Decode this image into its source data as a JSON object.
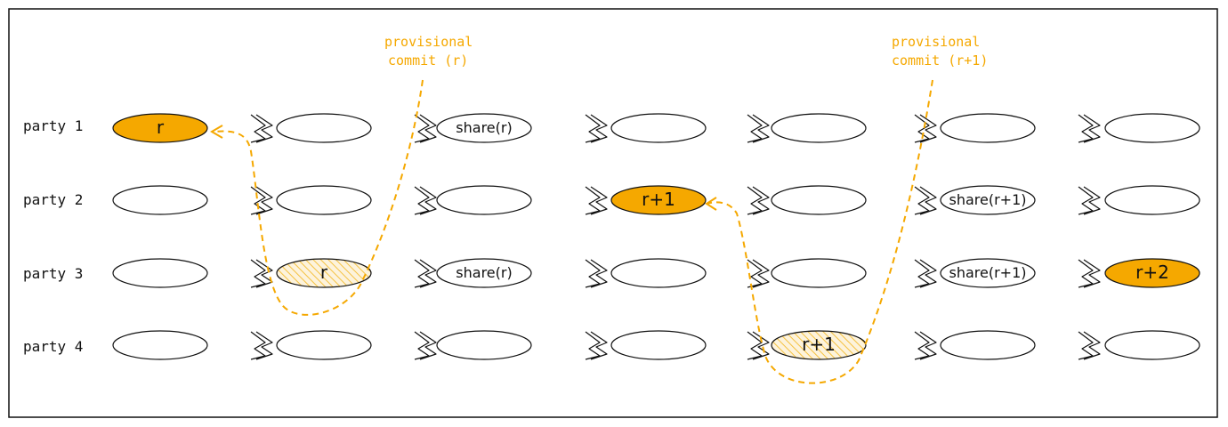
{
  "colors": {
    "accent": "#f5a800",
    "hatch": "#f5c242",
    "stroke": "#111111",
    "frame": "#111111"
  },
  "parties": [
    "party 1",
    "party 2",
    "party 3",
    "party 4"
  ],
  "columns": 7,
  "cells": [
    [
      {
        "label": "r",
        "style": "filled"
      },
      {
        "label": "",
        "style": "empty"
      },
      {
        "label": "share(r)",
        "style": "empty"
      },
      {
        "label": "",
        "style": "empty"
      },
      {
        "label": "",
        "style": "empty"
      },
      {
        "label": "",
        "style": "empty"
      },
      {
        "label": "",
        "style": "empty"
      }
    ],
    [
      {
        "label": "",
        "style": "empty"
      },
      {
        "label": "",
        "style": "empty"
      },
      {
        "label": "",
        "style": "empty"
      },
      {
        "label": "r+1",
        "style": "filled"
      },
      {
        "label": "",
        "style": "empty"
      },
      {
        "label": "share(r+1)",
        "style": "empty"
      },
      {
        "label": "",
        "style": "empty"
      }
    ],
    [
      {
        "label": "",
        "style": "empty"
      },
      {
        "label": "r",
        "style": "hatched"
      },
      {
        "label": "share(r)",
        "style": "empty"
      },
      {
        "label": "",
        "style": "empty"
      },
      {
        "label": "",
        "style": "empty"
      },
      {
        "label": "share(r+1)",
        "style": "empty"
      },
      {
        "label": "r+2",
        "style": "filled"
      }
    ],
    [
      {
        "label": "",
        "style": "empty"
      },
      {
        "label": "",
        "style": "empty"
      },
      {
        "label": "",
        "style": "empty"
      },
      {
        "label": "",
        "style": "empty"
      },
      {
        "label": "r+1",
        "style": "hatched"
      },
      {
        "label": "",
        "style": "empty"
      },
      {
        "label": "",
        "style": "empty"
      }
    ]
  ],
  "annotations": [
    {
      "line1": "provisional",
      "line2": "commit (r)"
    },
    {
      "line1": "provisional",
      "line2": "commit (r+1)"
    }
  ],
  "arrow_icon": "double-chevron-right-icon"
}
